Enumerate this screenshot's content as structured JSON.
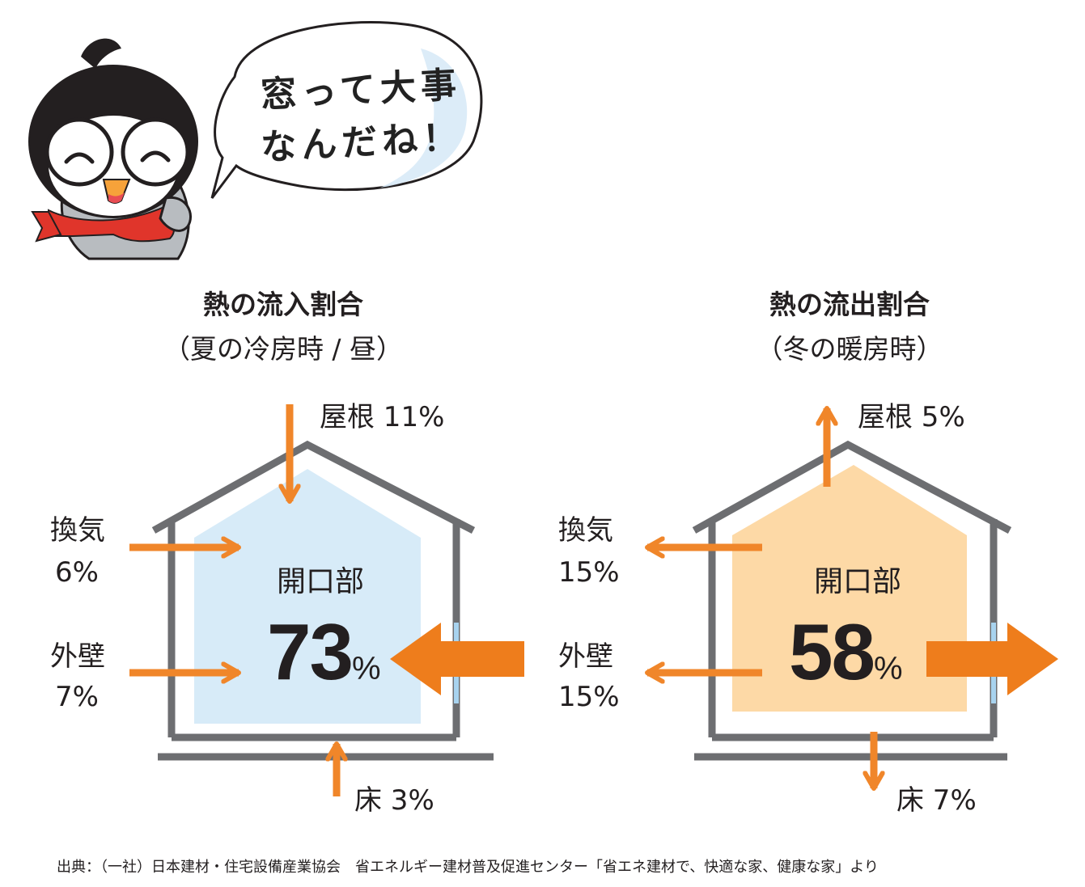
{
  "speech_bubble": {
    "line1": "窓って大事",
    "line2": "なんだね！"
  },
  "colors": {
    "arrow": "#f0862a",
    "summer_fill": "#d7ebf8",
    "winter_fill": "#fdd9a6",
    "house_outline": "#6d6e71"
  },
  "summer": {
    "title": "熱の流入割合",
    "subtitle": "（夏の冷房時 / 昼）",
    "roof": "屋根 11%",
    "ventilation_label": "換気",
    "ventilation_value": "6%",
    "wall_label": "外壁",
    "wall_value": "7%",
    "opening_label": "開口部",
    "opening_value": "73",
    "opening_unit": "%",
    "floor": "床 3%"
  },
  "winter": {
    "title": "熱の流出割合",
    "subtitle": "（冬の暖房時）",
    "roof": "屋根 5%",
    "ventilation_label": "換気",
    "ventilation_value": "15%",
    "wall_label": "外壁",
    "wall_value": "15%",
    "opening_label": "開口部",
    "opening_value": "58",
    "opening_unit": "%",
    "floor": "床 7%"
  },
  "source": "出典：（一社）日本建材・住宅設備産業協会　省エネルギー建材普及促進センター「省エネ建材で、快適な家、健康な家」より"
}
